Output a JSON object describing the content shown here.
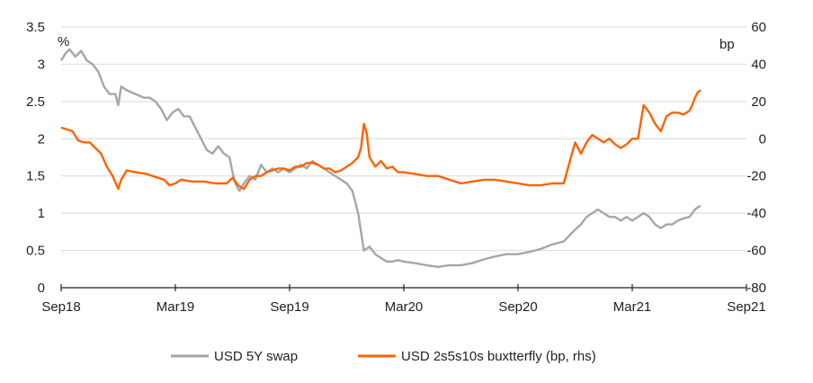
{
  "chart_data": {
    "type": "line",
    "left_unit": "%",
    "right_unit": "bp",
    "x_ticks": [
      "Sep18",
      "Mar19",
      "Sep19",
      "Mar20",
      "Sep20",
      "Mar21",
      "Sep21"
    ],
    "ylim_left": [
      0,
      3.5
    ],
    "ylim_right": [
      -80,
      60
    ],
    "yticks_left": [
      "0",
      "0.5",
      "1",
      "1.5",
      "2",
      "2.5",
      "3",
      "3.5"
    ],
    "yticks_right": [
      "-80",
      "-60",
      "-40",
      "-20",
      "0",
      "20",
      "40",
      "60"
    ],
    "grid": "horizontal",
    "legend_position": "bottom",
    "series": [
      {
        "name": "USD 5Y swap",
        "axis": "left",
        "color": "#a6a6a6",
        "points": [
          [
            0,
            3.05
          ],
          [
            0.08,
            3.15
          ],
          [
            0.15,
            3.2
          ],
          [
            0.25,
            3.1
          ],
          [
            0.35,
            3.18
          ],
          [
            0.45,
            3.05
          ],
          [
            0.55,
            3.0
          ],
          [
            0.65,
            2.9
          ],
          [
            0.75,
            2.7
          ],
          [
            0.85,
            2.6
          ],
          [
            0.95,
            2.6
          ],
          [
            1.0,
            2.45
          ],
          [
            1.05,
            2.7
          ],
          [
            1.15,
            2.65
          ],
          [
            1.3,
            2.6
          ],
          [
            1.45,
            2.55
          ],
          [
            1.55,
            2.55
          ],
          [
            1.65,
            2.5
          ],
          [
            1.75,
            2.4
          ],
          [
            1.85,
            2.25
          ],
          [
            1.95,
            2.35
          ],
          [
            2.05,
            2.4
          ],
          [
            2.15,
            2.3
          ],
          [
            2.25,
            2.3
          ],
          [
            2.35,
            2.15
          ],
          [
            2.45,
            2.0
          ],
          [
            2.55,
            1.85
          ],
          [
            2.65,
            1.8
          ],
          [
            2.75,
            1.9
          ],
          [
            2.85,
            1.8
          ],
          [
            2.95,
            1.75
          ],
          [
            3.0,
            1.55
          ],
          [
            3.05,
            1.4
          ],
          [
            3.12,
            1.3
          ],
          [
            3.2,
            1.4
          ],
          [
            3.3,
            1.5
          ],
          [
            3.4,
            1.45
          ],
          [
            3.5,
            1.65
          ],
          [
            3.6,
            1.55
          ],
          [
            3.7,
            1.6
          ],
          [
            3.8,
            1.55
          ],
          [
            3.9,
            1.6
          ],
          [
            4.0,
            1.55
          ],
          [
            4.1,
            1.6
          ],
          [
            4.2,
            1.65
          ],
          [
            4.3,
            1.6
          ],
          [
            4.4,
            1.7
          ],
          [
            4.5,
            1.65
          ],
          [
            4.6,
            1.6
          ],
          [
            4.7,
            1.55
          ],
          [
            4.8,
            1.5
          ],
          [
            4.9,
            1.45
          ],
          [
            5.0,
            1.4
          ],
          [
            5.1,
            1.3
          ],
          [
            5.2,
            1.0
          ],
          [
            5.3,
            0.5
          ],
          [
            5.4,
            0.55
          ],
          [
            5.5,
            0.45
          ],
          [
            5.6,
            0.4
          ],
          [
            5.7,
            0.35
          ],
          [
            5.8,
            0.35
          ],
          [
            5.9,
            0.37
          ],
          [
            6.0,
            0.35
          ],
          [
            6.2,
            0.33
          ],
          [
            6.4,
            0.3
          ],
          [
            6.6,
            0.28
          ],
          [
            6.8,
            0.3
          ],
          [
            7.0,
            0.3
          ],
          [
            7.2,
            0.33
          ],
          [
            7.4,
            0.38
          ],
          [
            7.6,
            0.42
          ],
          [
            7.8,
            0.45
          ],
          [
            8.0,
            0.45
          ],
          [
            8.2,
            0.48
          ],
          [
            8.4,
            0.52
          ],
          [
            8.6,
            0.58
          ],
          [
            8.8,
            0.62
          ],
          [
            9.0,
            0.78
          ],
          [
            9.1,
            0.85
          ],
          [
            9.2,
            0.95
          ],
          [
            9.3,
            1.0
          ],
          [
            9.4,
            1.05
          ],
          [
            9.5,
            1.0
          ],
          [
            9.6,
            0.95
          ],
          [
            9.7,
            0.95
          ],
          [
            9.8,
            0.9
          ],
          [
            9.9,
            0.95
          ],
          [
            10.0,
            0.9
          ],
          [
            10.1,
            0.95
          ],
          [
            10.2,
            1.0
          ],
          [
            10.3,
            0.95
          ],
          [
            10.4,
            0.85
          ],
          [
            10.5,
            0.8
          ],
          [
            10.6,
            0.85
          ],
          [
            10.7,
            0.85
          ],
          [
            10.8,
            0.9
          ],
          [
            10.9,
            0.93
          ],
          [
            11.0,
            0.95
          ],
          [
            11.05,
            1.0
          ],
          [
            11.1,
            1.05
          ],
          [
            11.15,
            1.08
          ],
          [
            11.2,
            1.1
          ]
        ]
      },
      {
        "name": "USD 2s5s10s buxtterfly (bp, rhs)",
        "axis": "right",
        "color": "#ff6200",
        "points": [
          [
            0,
            6
          ],
          [
            0.1,
            5
          ],
          [
            0.2,
            4
          ],
          [
            0.3,
            -1
          ],
          [
            0.4,
            -2
          ],
          [
            0.5,
            -2
          ],
          [
            0.6,
            -5
          ],
          [
            0.7,
            -8
          ],
          [
            0.8,
            -15
          ],
          [
            0.9,
            -20
          ],
          [
            1.0,
            -27
          ],
          [
            1.05,
            -22
          ],
          [
            1.15,
            -17
          ],
          [
            1.3,
            -18
          ],
          [
            1.5,
            -19
          ],
          [
            1.7,
            -21
          ],
          [
            1.8,
            -22
          ],
          [
            1.9,
            -25
          ],
          [
            2.0,
            -24
          ],
          [
            2.1,
            -22
          ],
          [
            2.3,
            -23
          ],
          [
            2.5,
            -23
          ],
          [
            2.7,
            -24
          ],
          [
            2.9,
            -24
          ],
          [
            3.0,
            -21
          ],
          [
            3.1,
            -25
          ],
          [
            3.2,
            -27
          ],
          [
            3.3,
            -22
          ],
          [
            3.4,
            -20
          ],
          [
            3.5,
            -20
          ],
          [
            3.6,
            -18
          ],
          [
            3.7,
            -17
          ],
          [
            3.8,
            -16
          ],
          [
            3.9,
            -16
          ],
          [
            4.0,
            -17
          ],
          [
            4.1,
            -15
          ],
          [
            4.2,
            -15
          ],
          [
            4.3,
            -13
          ],
          [
            4.4,
            -13
          ],
          [
            4.5,
            -14
          ],
          [
            4.6,
            -16
          ],
          [
            4.7,
            -16
          ],
          [
            4.8,
            -18
          ],
          [
            4.9,
            -17
          ],
          [
            5.0,
            -15
          ],
          [
            5.1,
            -13
          ],
          [
            5.2,
            -10
          ],
          [
            5.25,
            -5
          ],
          [
            5.3,
            8
          ],
          [
            5.35,
            3
          ],
          [
            5.4,
            -10
          ],
          [
            5.5,
            -15
          ],
          [
            5.6,
            -12
          ],
          [
            5.7,
            -16
          ],
          [
            5.8,
            -15
          ],
          [
            5.9,
            -18
          ],
          [
            6.0,
            -18
          ],
          [
            6.2,
            -19
          ],
          [
            6.4,
            -20
          ],
          [
            6.6,
            -20
          ],
          [
            6.8,
            -22
          ],
          [
            7.0,
            -24
          ],
          [
            7.2,
            -23
          ],
          [
            7.4,
            -22
          ],
          [
            7.6,
            -22
          ],
          [
            7.8,
            -23
          ],
          [
            8.0,
            -24
          ],
          [
            8.2,
            -25
          ],
          [
            8.4,
            -25
          ],
          [
            8.6,
            -24
          ],
          [
            8.8,
            -24
          ],
          [
            9.0,
            -2
          ],
          [
            9.1,
            -8
          ],
          [
            9.2,
            -2
          ],
          [
            9.3,
            2
          ],
          [
            9.4,
            0
          ],
          [
            9.5,
            -2
          ],
          [
            9.6,
            0
          ],
          [
            9.7,
            -3
          ],
          [
            9.8,
            -5
          ],
          [
            9.9,
            -3
          ],
          [
            10.0,
            0
          ],
          [
            10.1,
            0
          ],
          [
            10.2,
            18
          ],
          [
            10.3,
            14
          ],
          [
            10.4,
            8
          ],
          [
            10.5,
            4
          ],
          [
            10.6,
            12
          ],
          [
            10.7,
            14
          ],
          [
            10.8,
            14
          ],
          [
            10.9,
            13
          ],
          [
            11.0,
            15
          ],
          [
            11.05,
            18
          ],
          [
            11.1,
            22
          ],
          [
            11.15,
            25
          ],
          [
            11.2,
            26
          ]
        ]
      }
    ]
  }
}
